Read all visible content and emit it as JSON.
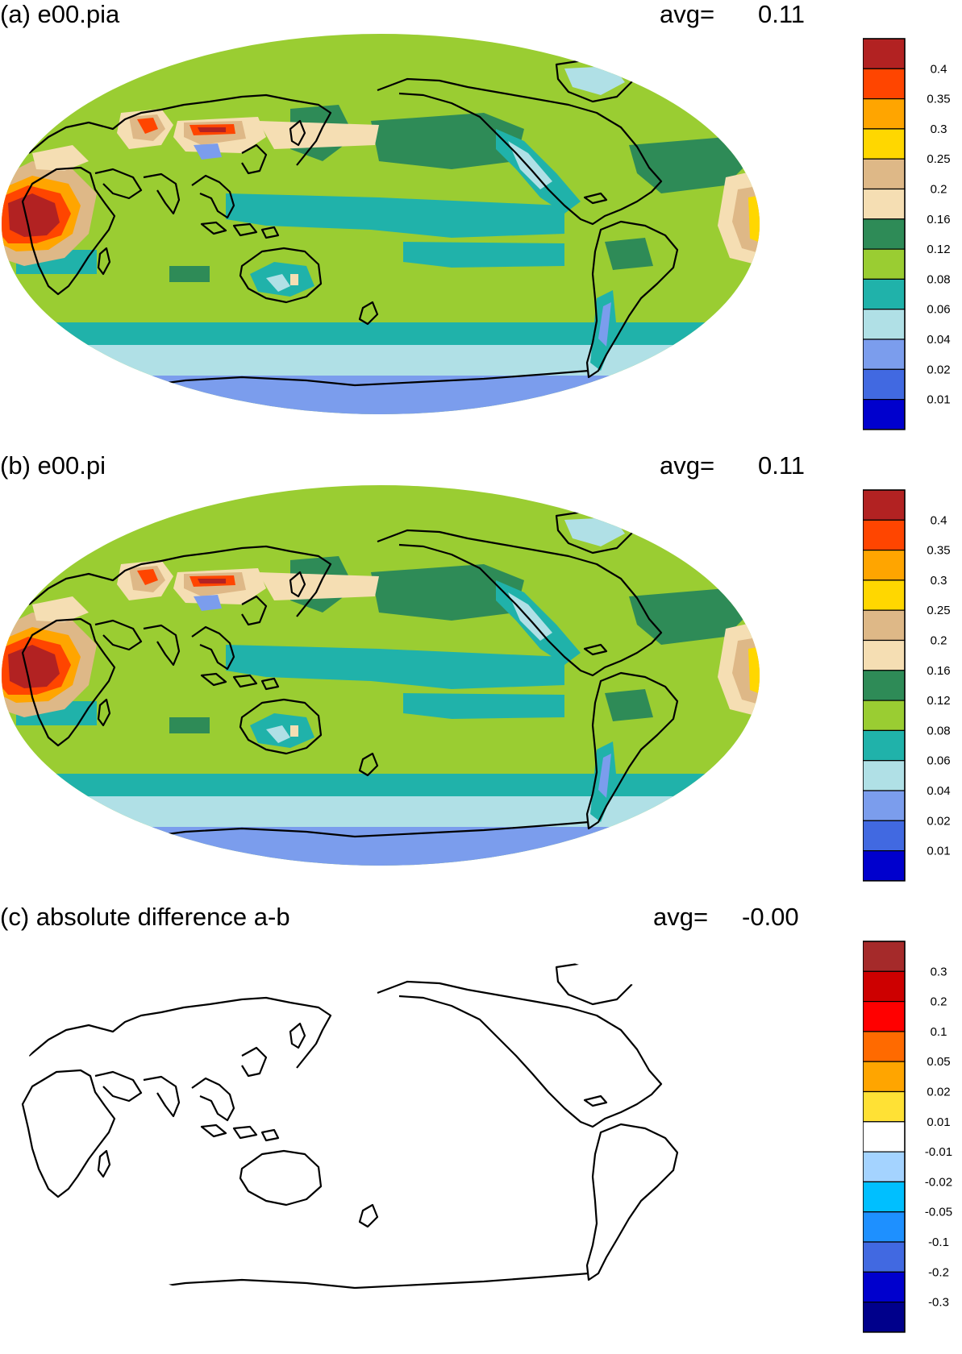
{
  "panels": [
    {
      "id": "a",
      "title": "(a) e00.pia",
      "avg_label": "avg=",
      "avg_value": "0.11",
      "variant": "full",
      "colorbar": {
        "colors": [
          "#b22222",
          "#ff4500",
          "#ffa500",
          "#ffd700",
          "#deb887",
          "#f5deb3",
          "#2e8b57",
          "#9acd32",
          "#20b2aa",
          "#b0e0e6",
          "#7b9ded",
          "#4169e1",
          "#0000cd"
        ],
        "labels": [
          "0.4",
          "0.35",
          "0.3",
          "0.25",
          "0.2",
          "0.16",
          "0.12",
          "0.08",
          "0.06",
          "0.04",
          "0.02",
          "0.01"
        ]
      }
    },
    {
      "id": "b",
      "title": "(b) e00.pi",
      "avg_label": "avg=",
      "avg_value": "0.11",
      "variant": "full",
      "colorbar": {
        "colors": [
          "#b22222",
          "#ff4500",
          "#ffa500",
          "#ffd700",
          "#deb887",
          "#f5deb3",
          "#2e8b57",
          "#9acd32",
          "#20b2aa",
          "#b0e0e6",
          "#7b9ded",
          "#4169e1",
          "#0000cd"
        ],
        "labels": [
          "0.4",
          "0.35",
          "0.3",
          "0.25",
          "0.2",
          "0.16",
          "0.12",
          "0.08",
          "0.06",
          "0.04",
          "0.02",
          "0.01"
        ]
      }
    },
    {
      "id": "c",
      "title": "(c) absolute difference a-b",
      "avg_label": "avg=",
      "avg_value": "-0.00",
      "variant": "blank",
      "colorbar": {
        "colors": [
          "#a52a2a",
          "#cd0000",
          "#ff0000",
          "#ff6a00",
          "#ffa500",
          "#ffe135",
          "#ffffff",
          "#a4d3ff",
          "#00bfff",
          "#1e90ff",
          "#4169e1",
          "#0000cd",
          "#00008b"
        ],
        "labels": [
          "0.3",
          "0.2",
          "0.1",
          "0.05",
          "0.02",
          "0.01",
          "-0.01",
          "-0.02",
          "-0.05",
          "-0.1",
          "-0.2",
          "-0.3"
        ]
      }
    }
  ]
}
